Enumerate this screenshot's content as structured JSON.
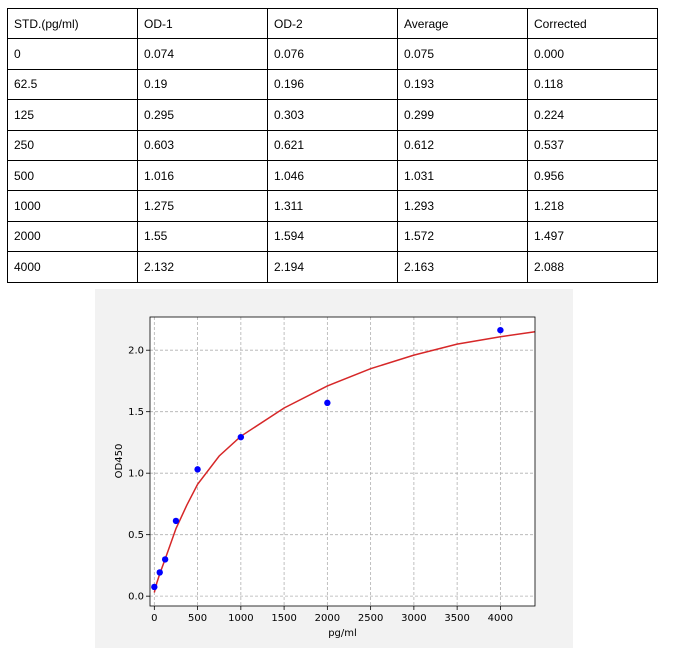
{
  "table": {
    "headers": [
      "STD.(pg/ml)",
      "OD-1",
      "OD-2",
      "Average",
      "Corrected"
    ],
    "rows": [
      [
        "0",
        "0.074",
        "0.076",
        "0.075",
        "0.000"
      ],
      [
        "62.5",
        "0.19",
        "0.196",
        "0.193",
        "0.118"
      ],
      [
        "125",
        "0.295",
        "0.303",
        "0.299",
        "0.224"
      ],
      [
        "250",
        "0.603",
        "0.621",
        "0.612",
        "0.537"
      ],
      [
        "500",
        "1.016",
        "1.046",
        "1.031",
        "0.956"
      ],
      [
        "1000",
        "1.275",
        "1.311",
        "1.293",
        "1.218"
      ],
      [
        "2000",
        "1.55",
        "1.594",
        "1.572",
        "1.497"
      ],
      [
        "4000",
        "2.132",
        "2.194",
        "2.163",
        "2.088"
      ]
    ]
  },
  "chart_data": {
    "type": "scatter",
    "title": "",
    "xlabel": "pg/ml",
    "ylabel": "OD450",
    "xlim": [
      -50,
      4400
    ],
    "ylim": [
      -0.08,
      2.27
    ],
    "xticks": [
      0,
      500,
      1000,
      1500,
      2000,
      2500,
      3000,
      3500,
      4000
    ],
    "yticks": [
      0.0,
      0.5,
      1.0,
      1.5,
      2.0
    ],
    "xtick_labels": [
      "0",
      "500",
      "1000",
      "1500",
      "2000",
      "2500",
      "3000",
      "3500",
      "4000"
    ],
    "ytick_labels": [
      "0.0",
      "0.5",
      "1.0",
      "1.5",
      "2.0"
    ],
    "grid": true,
    "series": [
      {
        "kind": "points",
        "color": "#0000ff",
        "x": [
          0,
          62.5,
          125,
          250,
          500,
          1000,
          2000,
          4000
        ],
        "y": [
          0.075,
          0.193,
          0.299,
          0.612,
          1.031,
          1.293,
          1.572,
          2.163
        ]
      },
      {
        "kind": "fit-curve",
        "color": "#d62728",
        "x": [
          0,
          30,
          62.5,
          125,
          250,
          375,
          500,
          750,
          1000,
          1500,
          2000,
          2500,
          3000,
          3500,
          4000,
          4400
        ],
        "y": [
          0.03,
          0.11,
          0.18,
          0.3,
          0.55,
          0.74,
          0.91,
          1.14,
          1.3,
          1.53,
          1.71,
          1.85,
          1.96,
          2.05,
          2.11,
          2.15
        ]
      }
    ]
  }
}
